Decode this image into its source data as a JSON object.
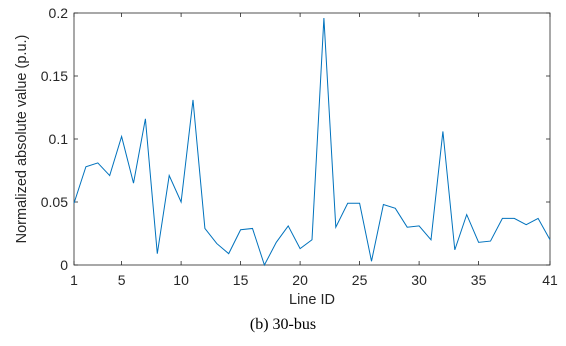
{
  "chart_data": {
    "type": "line",
    "caption": "(b) 30-bus",
    "xlabel": "Line ID",
    "ylabel": "Normalized absolute value (p.u.)",
    "xlim": [
      1,
      41
    ],
    "ylim": [
      0,
      0.2
    ],
    "xticks": [
      1,
      5,
      10,
      15,
      20,
      25,
      30,
      35,
      41
    ],
    "yticks": [
      0,
      0.05,
      0.1,
      0.15,
      0.2
    ],
    "ytick_labels": [
      "0",
      "0.05",
      "0.1",
      "0.15",
      "0.2"
    ],
    "grid": false,
    "line_color": "#0072BD",
    "series": [
      {
        "x": [
          1,
          2,
          3,
          4,
          5,
          6,
          7,
          8,
          9,
          10,
          11,
          12,
          13,
          14,
          15,
          16,
          17,
          18,
          19,
          20,
          21,
          22,
          23,
          24,
          25,
          26,
          27,
          28,
          29,
          30,
          31,
          32,
          33,
          34,
          35,
          36,
          37,
          38,
          39,
          40,
          41
        ],
        "values": [
          0.049,
          0.078,
          0.081,
          0.071,
          0.102,
          0.065,
          0.116,
          0.009,
          0.071,
          0.05,
          0.131,
          0.029,
          0.017,
          0.009,
          0.028,
          0.029,
          0.0,
          0.018,
          0.031,
          0.013,
          0.02,
          0.196,
          0.03,
          0.049,
          0.049,
          0.003,
          0.048,
          0.045,
          0.03,
          0.031,
          0.02,
          0.106,
          0.012,
          0.04,
          0.018,
          0.019,
          0.037,
          0.037,
          0.032,
          0.037,
          0.02
        ]
      }
    ]
  }
}
